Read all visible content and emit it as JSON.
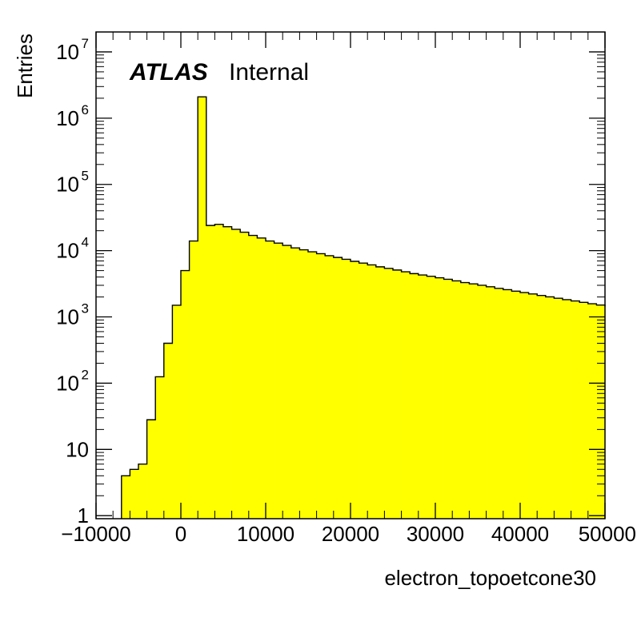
{
  "chart_data": {
    "type": "bar",
    "style": "histogram",
    "title": "",
    "xlabel": "electron_topoetcone30",
    "ylabel": "Entries",
    "xlim": [
      -10000,
      50000
    ],
    "ylim": [
      0.9,
      20000000
    ],
    "log_y": true,
    "grid": false,
    "legend": "none",
    "fill_color": "#ffff00",
    "line_color": "#000000",
    "bin_width": 1000,
    "bin_start": -7000,
    "values": [
      4,
      5,
      6,
      28,
      125,
      400,
      1500,
      5000,
      14000,
      2100000,
      24000,
      25000,
      23000,
      21000,
      19000,
      17000,
      15500,
      14000,
      13000,
      12000,
      11000,
      10300,
      9600,
      9000,
      8400,
      7900,
      7400,
      6900,
      6500,
      6100,
      5700,
      5400,
      5100,
      4800,
      4500,
      4300,
      4100,
      3900,
      3700,
      3500,
      3300,
      3150,
      3000,
      2850,
      2700,
      2580,
      2450,
      2330,
      2220,
      2110,
      2010,
      1910,
      1820,
      1740,
      1660,
      1580,
      1510,
      1440
    ],
    "x_ticks": [
      "−10000",
      "0",
      "10000",
      "20000",
      "30000",
      "40000",
      "50000"
    ],
    "y_ticks": [
      {
        "base": "1",
        "exp": ""
      },
      {
        "base": "10",
        "exp": ""
      },
      {
        "base": "10",
        "exp": "2"
      },
      {
        "base": "10",
        "exp": "3"
      },
      {
        "base": "10",
        "exp": "4"
      },
      {
        "base": "10",
        "exp": "5"
      },
      {
        "base": "10",
        "exp": "6"
      },
      {
        "base": "10",
        "exp": "7"
      }
    ]
  },
  "annotation": {
    "experiment": "ATLAS",
    "status": "Internal"
  }
}
